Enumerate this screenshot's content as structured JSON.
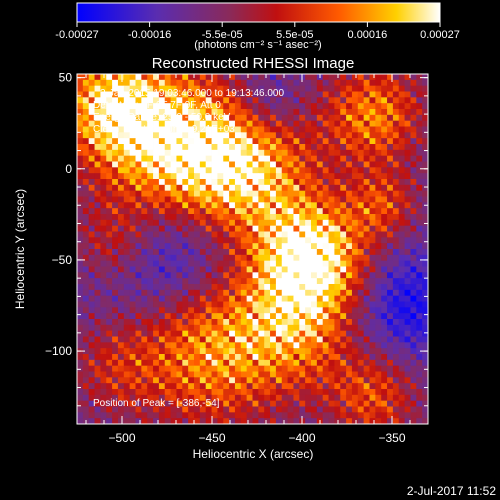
{
  "chart_data": {
    "type": "heatmap",
    "title": "Reconstructed RHESSI Image",
    "xlabel": "Heliocentric X (arcsec)",
    "ylabel": "Heliocentric Y (arcsec)",
    "xlim": [
      -525,
      -330
    ],
    "ylim": [
      -140,
      52
    ],
    "xticks": [
      -500,
      -450,
      -400,
      -350
    ],
    "yticks": [
      50,
      0,
      -50,
      -100
    ],
    "colorbar": {
      "range": [
        -0.00027,
        0.00027
      ],
      "tick_labels": [
        "-0.00027",
        "-0.00016",
        "-5.5e-05",
        "5.5e-05",
        "0.00016",
        "0.00027"
      ],
      "unit_label": "(photons cm⁻² s⁻¹ asec⁻²)",
      "colors": [
        "#0000ff",
        "#5a2db0",
        "#8a2a5a",
        "#c01010",
        "#ff5a00",
        "#ffd000",
        "#ffffff"
      ]
    },
    "annotations": {
      "time_range": "2-Jan-2015 19:03:46.000 to 19:13:46.000",
      "detectors": "Detectors: 3F 6F 7F 9F, Att 0",
      "energy_range": "Energy Range: 25.0 - 50.0 keV",
      "method_counts": "Clean     Total counts: 9.21E+03",
      "peak_position": "Position of Peak = [-386,-54]"
    },
    "peak": {
      "x": -386,
      "y": -54
    }
  },
  "timestamp": "2-Jul-2017 11:52"
}
